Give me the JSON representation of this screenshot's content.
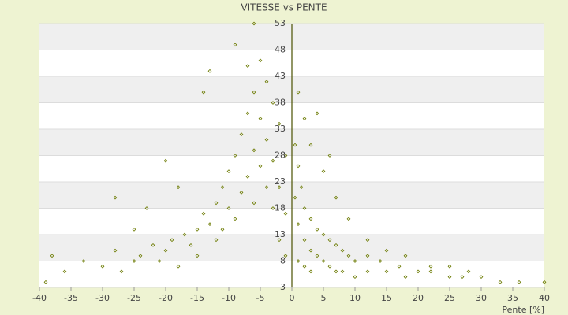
{
  "chart_data": {
    "type": "scatter",
    "title": "VITESSE vs PENTE",
    "x_label": "Pente [%]",
    "color": "#6b7a00",
    "grid": true,
    "xlim": [
      -40,
      40
    ],
    "xticks": [
      -40,
      -35,
      -30,
      -25,
      -20,
      -15,
      -10,
      -5,
      0,
      5,
      10,
      15,
      20,
      25,
      30,
      35,
      40
    ],
    "ylim": [
      3,
      53
    ],
    "yticks": [
      3,
      8,
      13,
      18,
      23,
      28,
      33,
      38,
      43,
      48,
      53
    ],
    "x": [
      -39,
      -38,
      -36,
      -33,
      -30,
      -28,
      -27,
      -25,
      -24,
      -22,
      -21,
      -20,
      -19,
      -18,
      -17,
      -16,
      -15,
      -15,
      -14,
      -13,
      -12,
      -12,
      -11,
      -11,
      -10,
      -10,
      -9,
      -9,
      -8,
      -8,
      -7,
      -7,
      -7,
      -6,
      -6,
      -6,
      -5,
      -5,
      -5,
      -4,
      -4,
      -4,
      -3,
      -3,
      -3,
      -2,
      -2,
      -2,
      -1,
      -1,
      -1,
      -20,
      -18,
      -14,
      -13,
      -9,
      -6,
      -28,
      -23,
      -25,
      0.5,
      0.5,
      1,
      1,
      1,
      1.5,
      2,
      2,
      2,
      3,
      3,
      3,
      4,
      4,
      5,
      5,
      6,
      6,
      7,
      7,
      8,
      8,
      9,
      10,
      10,
      12,
      12,
      14,
      15,
      17,
      18,
      20,
      22,
      25,
      27,
      30,
      33,
      36,
      40,
      3,
      5,
      7,
      9,
      12,
      15,
      18,
      22,
      25,
      28,
      4,
      6,
      1,
      2
    ],
    "values": [
      4,
      9,
      6,
      8,
      7,
      10,
      6,
      8,
      9,
      11,
      8,
      10,
      12,
      7,
      13,
      11,
      14,
      9,
      17,
      15,
      19,
      12,
      22,
      14,
      25,
      18,
      28,
      16,
      32,
      21,
      36,
      24,
      45,
      40,
      29,
      19,
      46,
      35,
      26,
      42,
      31,
      22,
      38,
      27,
      18,
      34,
      22,
      12,
      28,
      17,
      9,
      27,
      22,
      40,
      44,
      49,
      53,
      20,
      18,
      14,
      30,
      20,
      26,
      15,
      8,
      22,
      18,
      12,
      7,
      16,
      10,
      6,
      14,
      9,
      13,
      8,
      12,
      7,
      11,
      6,
      10,
      6,
      9,
      8,
      5,
      9,
      6,
      8,
      6,
      7,
      5,
      6,
      6,
      5,
      5,
      5,
      4,
      4,
      4,
      30,
      25,
      20,
      16,
      12,
      10,
      9,
      7,
      7,
      6,
      36,
      28,
      40,
      35
    ]
  }
}
